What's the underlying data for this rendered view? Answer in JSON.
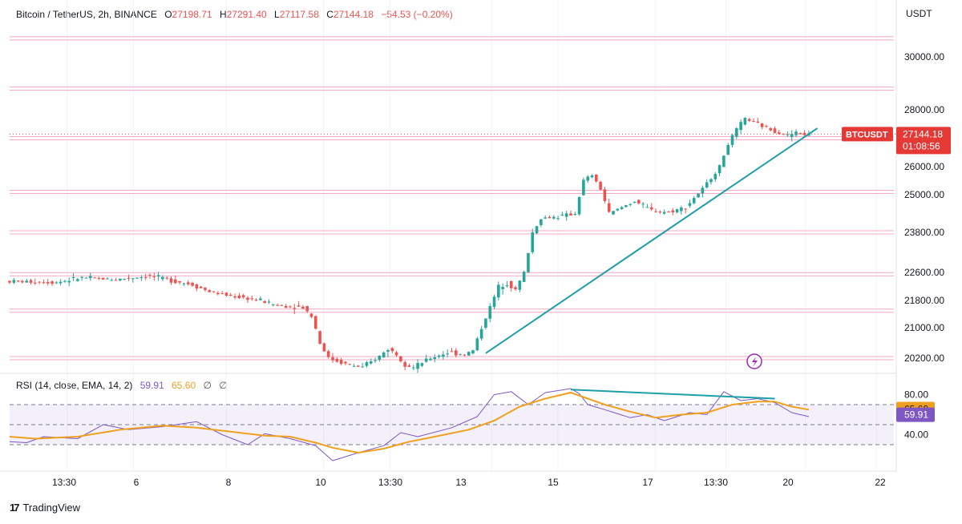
{
  "header": {
    "symbol": "Bitcoin / TetherUS, 2h, BINANCE",
    "o_label": "O",
    "o_val": "27198.71",
    "h_label": "H",
    "h_val": "27291.40",
    "l_label": "L",
    "l_val": "27117.58",
    "c_label": "C",
    "c_val": "27144.18",
    "change": "−54.53 (−0.20%)"
  },
  "rsi_header": {
    "label": "RSI (14, close, EMA, 14, 2)",
    "rsi_val": "59.91",
    "ema_val": "65.60",
    "eye1": "∅",
    "eye2": "∅"
  },
  "footer": {
    "logo": "17",
    "brand": "TradingView"
  },
  "colors": {
    "up": "#26a69a",
    "down": "#ef5350",
    "rsi": "#7e57c2",
    "ema": "#f0a020",
    "trend": "#1e9ea8",
    "level": "#f7a8c4",
    "badge": "#e53935"
  },
  "chart_data": [
    {
      "type": "candlestick",
      "title": "Bitcoin / TetherUS, 2h, BINANCE",
      "currency": "USDT",
      "x_tick_labels": [
        "13:30",
        "6",
        "8",
        "10",
        "13:30",
        "13",
        "15",
        "17",
        "13:30",
        "20",
        "22"
      ],
      "y_tick_labels": [
        "30000.00",
        "28000.00",
        "26000.00",
        "25000.00",
        "23800.00",
        "22600.00",
        "21800.00",
        "21000.00",
        "20200.00"
      ],
      "last_price_badge": {
        "symbol": "BTCUSDT",
        "price": "27144.18",
        "countdown": "01:08:56"
      },
      "horizontal_levels": [
        30700,
        28800,
        27000,
        25100,
        23800,
        22550,
        21500,
        20200
      ],
      "price_path": [
        [
          0,
          22350
        ],
        [
          6,
          22320
        ],
        [
          9,
          22450
        ],
        [
          13,
          22400
        ],
        [
          17,
          22500
        ],
        [
          19,
          22400
        ],
        [
          22,
          22250
        ],
        [
          24,
          22050
        ],
        [
          26,
          21950
        ],
        [
          30,
          21800
        ],
        [
          32,
          21650
        ],
        [
          35,
          21600
        ],
        [
          36,
          21350
        ],
        [
          37,
          20600
        ],
        [
          38,
          20200
        ],
        [
          40,
          20050
        ],
        [
          42,
          19950
        ],
        [
          44,
          20250
        ],
        [
          45,
          20450
        ],
        [
          46,
          20300
        ],
        [
          47,
          20050
        ],
        [
          48,
          19950
        ],
        [
          50,
          20200
        ],
        [
          52,
          20350
        ],
        [
          54,
          20300
        ],
        [
          55,
          20400
        ],
        [
          56,
          21000
        ],
        [
          57,
          21600
        ],
        [
          58,
          22200
        ],
        [
          59,
          22300
        ],
        [
          60,
          22100
        ],
        [
          61,
          22600
        ],
        [
          62,
          23800
        ],
        [
          63,
          24250
        ],
        [
          65,
          24300
        ],
        [
          67,
          24400
        ],
        [
          68,
          25500
        ],
        [
          69,
          25700
        ],
        [
          70,
          25200
        ],
        [
          71,
          24400
        ],
        [
          74,
          24800
        ],
        [
          76,
          24500
        ],
        [
          78,
          24450
        ],
        [
          80,
          24600
        ],
        [
          82,
          25200
        ],
        [
          84,
          26000
        ],
        [
          85,
          26800
        ],
        [
          86,
          27300
        ],
        [
          87,
          27700
        ],
        [
          88,
          27550
        ],
        [
          90,
          27300
        ],
        [
          92,
          27100
        ],
        [
          93,
          27200
        ],
        [
          94,
          27140
        ]
      ],
      "trendlines": [
        {
          "from": [
            56,
            20330
          ],
          "to": [
            95,
            27350
          ]
        }
      ]
    },
    {
      "type": "line",
      "title": "RSI (14, close, EMA, 14, 2)",
      "y_tick_labels": [
        "80.00",
        "40.00"
      ],
      "bands": [
        70,
        50,
        30
      ],
      "series": [
        {
          "name": "RSI",
          "values": [
            [
              0,
              33
            ],
            [
              2,
              32
            ],
            [
              4,
              38
            ],
            [
              8,
              36
            ],
            [
              11,
              50
            ],
            [
              14,
              45
            ],
            [
              18,
              48
            ],
            [
              22,
              53
            ],
            [
              25,
              40
            ],
            [
              28,
              30
            ],
            [
              30,
              41
            ],
            [
              33,
              36
            ],
            [
              36,
              29
            ],
            [
              38,
              14
            ],
            [
              41,
              22
            ],
            [
              44,
              29
            ],
            [
              46,
              42
            ],
            [
              48,
              38
            ],
            [
              52,
              47
            ],
            [
              55,
              58
            ],
            [
              57,
              80
            ],
            [
              59,
              83
            ],
            [
              61,
              70
            ],
            [
              63,
              82
            ],
            [
              66,
              86
            ],
            [
              67,
              81
            ],
            [
              68,
              70
            ],
            [
              70,
              65
            ],
            [
              73,
              57
            ],
            [
              75,
              60
            ],
            [
              77,
              54
            ],
            [
              80,
              62
            ],
            [
              82,
              60
            ],
            [
              84,
              83
            ],
            [
              86,
              74
            ],
            [
              88,
              76
            ],
            [
              90,
              72
            ],
            [
              92,
              62
            ],
            [
              93,
              60
            ],
            [
              94,
              58
            ]
          ]
        },
        {
          "name": "EMA",
          "values": [
            [
              0,
              38
            ],
            [
              3,
              36
            ],
            [
              8,
              38
            ],
            [
              13,
              45
            ],
            [
              18,
              49
            ],
            [
              22,
              47
            ],
            [
              26,
              43
            ],
            [
              30,
              39
            ],
            [
              33,
              38
            ],
            [
              36,
              32
            ],
            [
              38,
              27
            ],
            [
              41,
              22
            ],
            [
              44,
              26
            ],
            [
              47,
              33
            ],
            [
              50,
              38
            ],
            [
              54,
              45
            ],
            [
              57,
              54
            ],
            [
              60,
              68
            ],
            [
              63,
              76
            ],
            [
              66,
              82
            ],
            [
              68,
              76
            ],
            [
              70,
              70
            ],
            [
              73,
              63
            ],
            [
              76,
              57
            ],
            [
              79,
              60
            ],
            [
              82,
              62
            ],
            [
              85,
              70
            ],
            [
              88,
              73
            ],
            [
              90,
              73
            ],
            [
              92,
              68
            ],
            [
              94,
              65
            ]
          ]
        }
      ],
      "trendlines": [
        {
          "from": [
            66,
            85
          ],
          "to": [
            90,
            76
          ]
        }
      ]
    }
  ]
}
